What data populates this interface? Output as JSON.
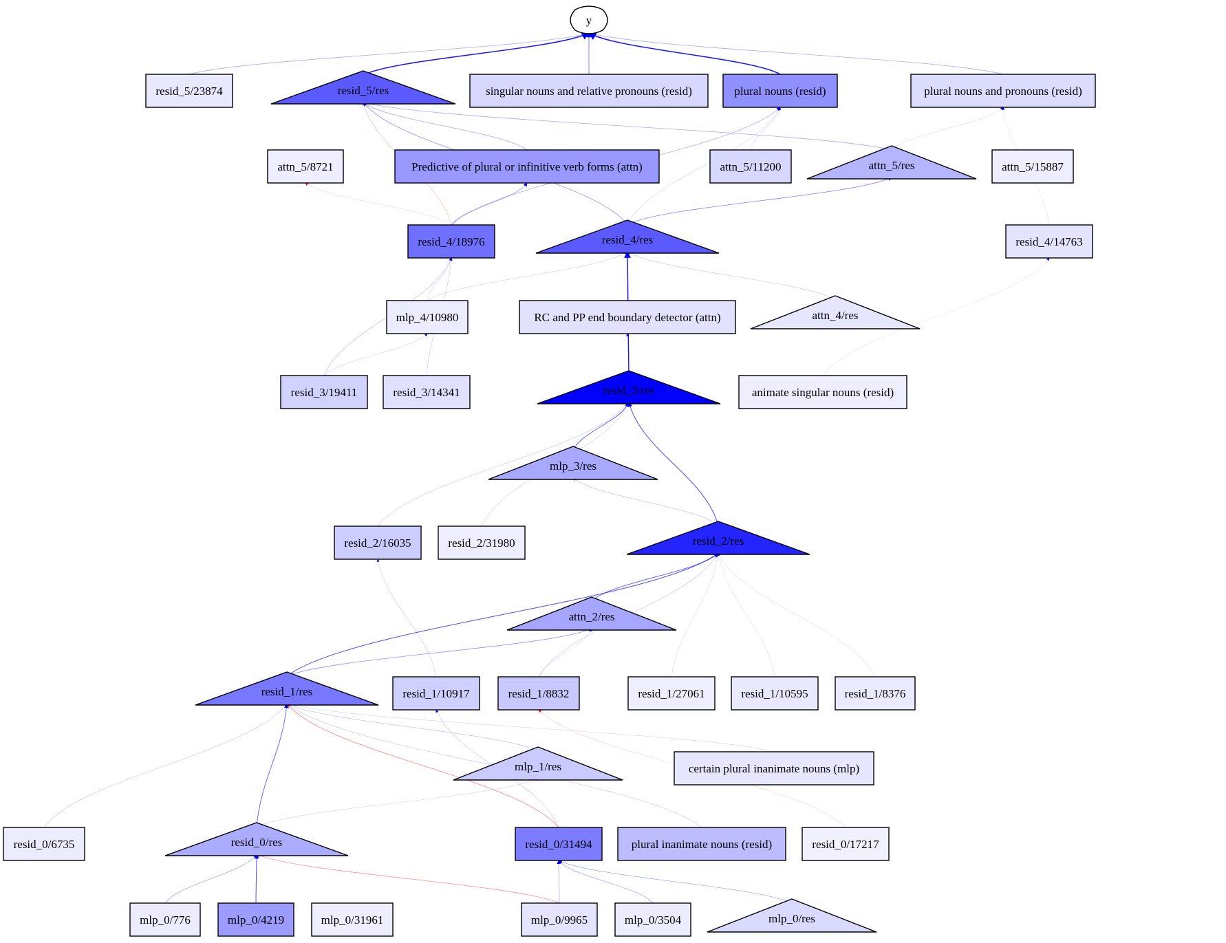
{
  "graph": {
    "nodes": {
      "y": {
        "label": "y",
        "fill": "#ffffff"
      },
      "resid_5_23874": {
        "label": "resid_5/23874",
        "fill": "#e8e8ff"
      },
      "resid_5_res": {
        "label": "resid_5/res",
        "fill": "#5a5aff"
      },
      "singular_nouns": {
        "label": "singular nouns and relative pronouns (resid)",
        "fill": "#d8d8ff"
      },
      "plural_nouns": {
        "label": "plural nouns (resid)",
        "fill": "#9090ff"
      },
      "plural_nouns_pronouns": {
        "label": "plural nouns and pronouns (resid)",
        "fill": "#dcdcff"
      },
      "attn_5_8721": {
        "label": "attn_5/8721",
        "fill": "#eeeeff"
      },
      "predictive_plural": {
        "label": "Predictive of plural or infinitive verb forms (attn)",
        "fill": "#9898ff"
      },
      "attn_5_11200": {
        "label": "attn_5/11200",
        "fill": "#d8d8ff"
      },
      "attn_5_res": {
        "label": "attn_5/res",
        "fill": "#b4b4ff"
      },
      "attn_5_15887": {
        "label": "attn_5/15887",
        "fill": "#eeeeff"
      },
      "resid_4_18976": {
        "label": "resid_4/18976",
        "fill": "#7070ff"
      },
      "resid_4_res": {
        "label": "resid_4/res",
        "fill": "#5a5aff"
      },
      "resid_4_14763": {
        "label": "resid_4/14763",
        "fill": "#e4e4ff"
      },
      "mlp_4_10980": {
        "label": "mlp_4/10980",
        "fill": "#ececff"
      },
      "rc_pp_boundary": {
        "label": "RC and PP end boundary detector (attn)",
        "fill": "#e2e2ff"
      },
      "attn_4_res": {
        "label": "attn_4/res",
        "fill": "#e6e6ff"
      },
      "resid_3_19411": {
        "label": "resid_3/19411",
        "fill": "#d2d2ff"
      },
      "resid_3_14341": {
        "label": "resid_3/14341",
        "fill": "#e0e0ff"
      },
      "resid_3_res": {
        "label": "resid_3/res",
        "fill": "#0000ff"
      },
      "animate_singular": {
        "label": "animate singular nouns (resid)",
        "fill": "#eeeeff"
      },
      "mlp_3_res": {
        "label": "mlp_3/res",
        "fill": "#a8a8ff"
      },
      "resid_2_16035": {
        "label": "resid_2/16035",
        "fill": "#ccccff"
      },
      "resid_2_31980": {
        "label": "resid_2/31980",
        "fill": "#eeeeff"
      },
      "resid_2_res": {
        "label": "resid_2/res",
        "fill": "#2424ff"
      },
      "attn_2_res": {
        "label": "attn_2/res",
        "fill": "#a6a6ff"
      },
      "resid_1_res": {
        "label": "resid_1/res",
        "fill": "#7878ff"
      },
      "resid_1_10917": {
        "label": "resid_1/10917",
        "fill": "#d0d0ff"
      },
      "resid_1_8832": {
        "label": "resid_1/8832",
        "fill": "#c8c8ff"
      },
      "resid_1_27061": {
        "label": "resid_1/27061",
        "fill": "#eeeeff"
      },
      "resid_1_10595": {
        "label": "resid_1/10595",
        "fill": "#e8e8ff"
      },
      "resid_1_8376": {
        "label": "resid_1/8376",
        "fill": "#eaeaff"
      },
      "mlp_1_res": {
        "label": "mlp_1/res",
        "fill": "#cacaff"
      },
      "certain_plural": {
        "label": "certain plural inanimate nouns (mlp)",
        "fill": "#e6e6ff"
      },
      "resid_0_6735": {
        "label": "resid_0/6735",
        "fill": "#ececff"
      },
      "resid_0_res": {
        "label": "resid_0/res",
        "fill": "#acacff"
      },
      "resid_0_31494": {
        "label": "resid_0/31494",
        "fill": "#7c7cff"
      },
      "plural_inanimate": {
        "label": "plural inanimate nouns (resid)",
        "fill": "#bcbcff"
      },
      "resid_0_17217": {
        "label": "resid_0/17217",
        "fill": "#f0f0ff"
      },
      "mlp_0_776": {
        "label": "mlp_0/776",
        "fill": "#ececff"
      },
      "mlp_0_4219": {
        "label": "mlp_0/4219",
        "fill": "#9c9cff"
      },
      "mlp_0_31961": {
        "label": "mlp_0/31961",
        "fill": "#eeeeff"
      },
      "mlp_0_9965": {
        "label": "mlp_0/9965",
        "fill": "#e4e4ff"
      },
      "mlp_0_3504": {
        "label": "mlp_0/3504",
        "fill": "#ececff"
      },
      "mlp_0_res": {
        "label": "mlp_0/res",
        "fill": "#dadaff"
      }
    },
    "edge_colors": {
      "positive": "#0000ff",
      "negative": "#ff0000"
    },
    "edges": [
      [
        "resid_5_res",
        "y",
        "pos",
        1.6,
        0.9
      ],
      [
        "plural_nouns",
        "y",
        "pos",
        1.6,
        0.9
      ],
      [
        "singular_nouns",
        "y",
        "pos",
        1,
        0.5
      ],
      [
        "resid_5_23874",
        "y",
        "pos",
        0.8,
        0.35
      ],
      [
        "plural_nouns_pronouns",
        "y",
        "pos",
        0.8,
        0.35
      ],
      [
        "resid_3_res",
        "resid_4_res",
        "pos",
        1.4,
        0.9
      ],
      [
        "mlp_3_res",
        "resid_3_res",
        "pos",
        1,
        0.6
      ],
      [
        "resid_2_res",
        "resid_3_res",
        "pos",
        1,
        0.7
      ],
      [
        "resid_1_res",
        "resid_2_res",
        "pos",
        1,
        0.7
      ],
      [
        "attn_2_res",
        "resid_2_res",
        "pos",
        1,
        0.6
      ],
      [
        "resid_1_res",
        "attn_2_res",
        "pos",
        0.8,
        0.45
      ],
      [
        "resid_0_res",
        "resid_1_res",
        "pos",
        1,
        0.6
      ],
      [
        "mlp_0_4219",
        "resid_0_res",
        "pos",
        1,
        0.7
      ],
      [
        "mlp_0_776",
        "resid_0_res",
        "pos",
        0.8,
        0.35
      ],
      [
        "mlp_0_9965",
        "resid_0_res",
        "neg",
        0.8,
        0.45
      ],
      [
        "resid_0_31494",
        "resid_1_res",
        "neg",
        0.8,
        0.5
      ],
      [
        "mlp_0_9965",
        "resid_0_31494",
        "pos",
        0.8,
        0.35
      ],
      [
        "mlp_0_3504",
        "resid_0_31494",
        "pos",
        0.8,
        0.35
      ],
      [
        "mlp_0_res",
        "resid_0_31494",
        "pos",
        0.8,
        0.35
      ],
      [
        "resid_4_18976",
        "predictive_plural",
        "pos",
        0.8,
        0.35
      ],
      [
        "resid_4_18976",
        "plural_nouns",
        "pos",
        0.8,
        0.35
      ],
      [
        "resid_4_18976",
        "resid_5_res",
        "neg",
        0.6,
        0.3
      ],
      [
        "resid_4_res",
        "attn_5_res",
        "pos",
        0.8,
        0.5
      ],
      [
        "resid_4_res",
        "resid_5_res",
        "pos",
        0.8,
        0.45
      ],
      [
        "attn_5_res",
        "resid_5_res",
        "pos",
        0.8,
        0.35
      ],
      [
        "predictive_plural",
        "resid_5_res",
        "pos",
        0.8,
        0.35
      ],
      [
        "rc_pp_boundary",
        "resid_4_res",
        "pos",
        0.8,
        0.25
      ],
      [
        "resid_3_res",
        "rc_pp_boundary",
        "pos",
        0.6,
        0.2
      ],
      [
        "attn_4_res",
        "resid_4_res",
        "pos",
        0.6,
        0.25
      ],
      [
        "mlp_4_10980",
        "resid_4_res",
        "pos",
        0.6,
        0.2
      ],
      [
        "mlp_4_10980",
        "resid_4_18976",
        "pos",
        0.6,
        0.2
      ],
      [
        "resid_3_19411",
        "resid_4_18976",
        "pos",
        0.6,
        0.3
      ],
      [
        "resid_3_14341",
        "resid_4_18976",
        "pos",
        0.6,
        0.25
      ],
      [
        "resid_3_19411",
        "mlp_4_10980",
        "pos",
        0.6,
        0.2
      ],
      [
        "resid_2_16035",
        "resid_3_res",
        "pos",
        0.6,
        0.25
      ],
      [
        "resid_2_res",
        "mlp_3_res",
        "pos",
        0.6,
        0.3
      ],
      [
        "resid_1_10917",
        "resid_2_16035",
        "pos",
        0.6,
        0.25
      ],
      [
        "resid_1_8832",
        "resid_2_res",
        "pos",
        0.6,
        0.25
      ],
      [
        "resid_1_27061",
        "resid_2_res",
        "pos",
        0.6,
        0.15
      ],
      [
        "resid_1_10595",
        "resid_2_res",
        "pos",
        0.6,
        0.15
      ],
      [
        "resid_1_8376",
        "resid_2_res",
        "pos",
        0.6,
        0.15
      ],
      [
        "resid_0_6735",
        "resid_1_res",
        "pos",
        0.6,
        0.25
      ],
      [
        "resid_0_31494",
        "resid_1_10917",
        "pos",
        0.6,
        0.25
      ],
      [
        "mlp_1_res",
        "resid_1_res",
        "pos",
        0.6,
        0.3
      ],
      [
        "certain_plural",
        "resid_1_res",
        "pos",
        0.6,
        0.2
      ],
      [
        "plural_inanimate",
        "resid_1_res",
        "pos",
        0.6,
        0.25
      ],
      [
        "resid_1_8832",
        "attn_2_res",
        "pos",
        0.6,
        0.15
      ],
      [
        "resid_0_res",
        "mlp_1_res",
        "pos",
        0.6,
        0.2
      ],
      [
        "animate_singular",
        "resid_4_14763",
        "pos",
        0.6,
        0.12
      ],
      [
        "resid_4_14763",
        "plural_nouns_pronouns",
        "pos",
        0.6,
        0.12
      ],
      [
        "resid_4_res",
        "plural_nouns",
        "pos",
        0.6,
        0.2
      ],
      [
        "attn_5_res",
        "plural_nouns_pronouns",
        "pos",
        0.6,
        0.15
      ],
      [
        "attn_5_11200",
        "plural_nouns",
        "pos",
        0.6,
        0.15
      ],
      [
        "resid_4_18976",
        "attn_5_8721",
        "neg",
        0.6,
        0.2
      ],
      [
        "resid_2_31980",
        "resid_3_res",
        "pos",
        0.6,
        0.2
      ],
      [
        "resid_0_17217",
        "resid_1_8832",
        "neg",
        0.6,
        0.2
      ]
    ]
  }
}
